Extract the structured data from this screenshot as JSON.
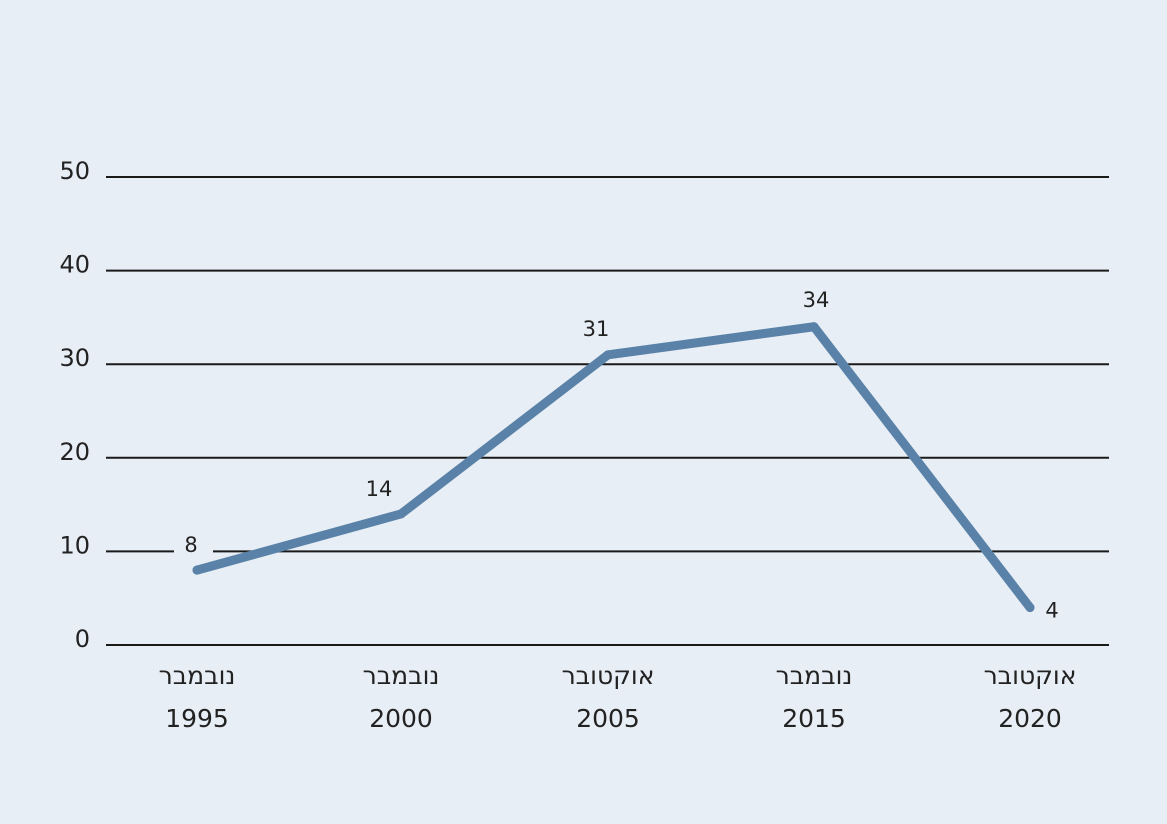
{
  "chart_data": {
    "type": "line",
    "categories": [
      {
        "month": "נובמבר",
        "year": "1995"
      },
      {
        "month": "נובמבר",
        "year": "2000"
      },
      {
        "month": "אוקטובר",
        "year": "2005"
      },
      {
        "month": "נובמבר",
        "year": "2015"
      },
      {
        "month": "אוקטובר",
        "year": "2020"
      }
    ],
    "values": [
      8,
      14,
      31,
      34,
      4
    ],
    "data_labels": [
      "8",
      "14",
      "31",
      "34",
      "4"
    ],
    "ylim": [
      0,
      50
    ],
    "yticks": [
      0,
      10,
      20,
      30,
      40,
      50
    ],
    "ytick_labels": [
      "0",
      "10",
      "20",
      "30",
      "40",
      "50"
    ],
    "grid": true,
    "title": "",
    "xlabel": "",
    "ylabel": "",
    "colors": {
      "background": "#e8eef5",
      "line": "#5a82a8",
      "grid": "#1a1a1a",
      "text": "#222222"
    }
  }
}
